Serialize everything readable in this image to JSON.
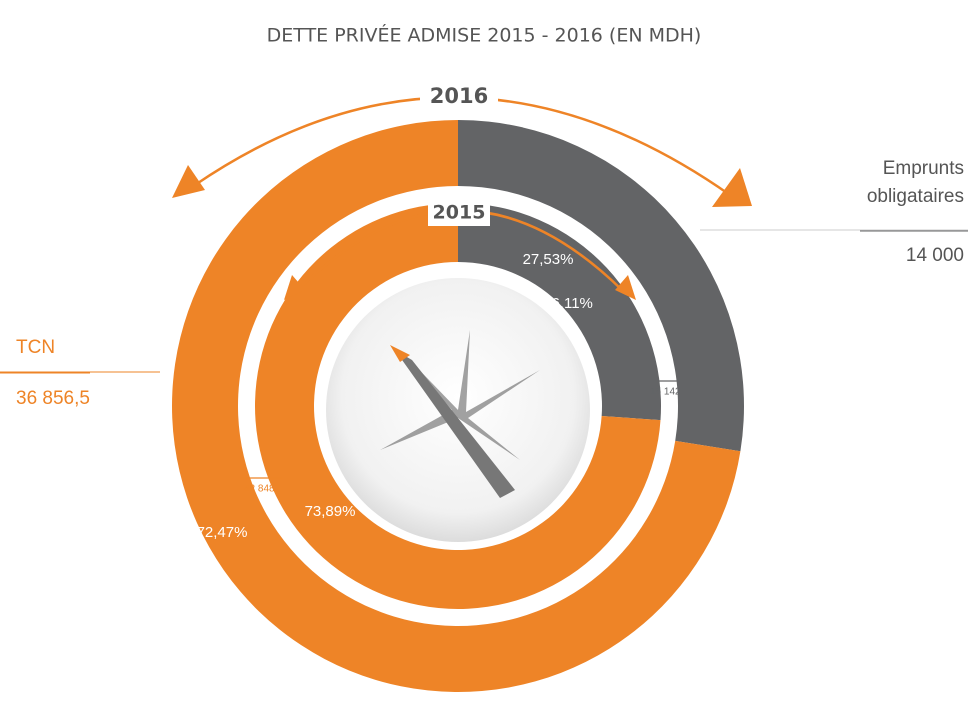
{
  "chart_data": {
    "type": "donut",
    "title": "DETTE PRIVÉE ADMISE 2015 - 2016 (EN MDH)",
    "categories": [
      "Emprunts obligataires",
      "TCN"
    ],
    "colors": [
      "#636466",
      "#ee8427"
    ],
    "rings": [
      {
        "name": "2016",
        "values": [
          27.53,
          72.47
        ],
        "value_labels": [
          "27,53%",
          "72,47%"
        ],
        "amounts": [
          14000,
          36856.5
        ],
        "amount_labels": [
          "14 000",
          "36 856,5"
        ]
      },
      {
        "name": "2015",
        "values": [
          26.11,
          73.89
        ],
        "value_labels": [
          "26,11%",
          "73,89%"
        ],
        "amounts": [
          15142,
          42848
        ],
        "amount_labels": [
          "15 142",
          "42 848"
        ]
      }
    ]
  }
}
